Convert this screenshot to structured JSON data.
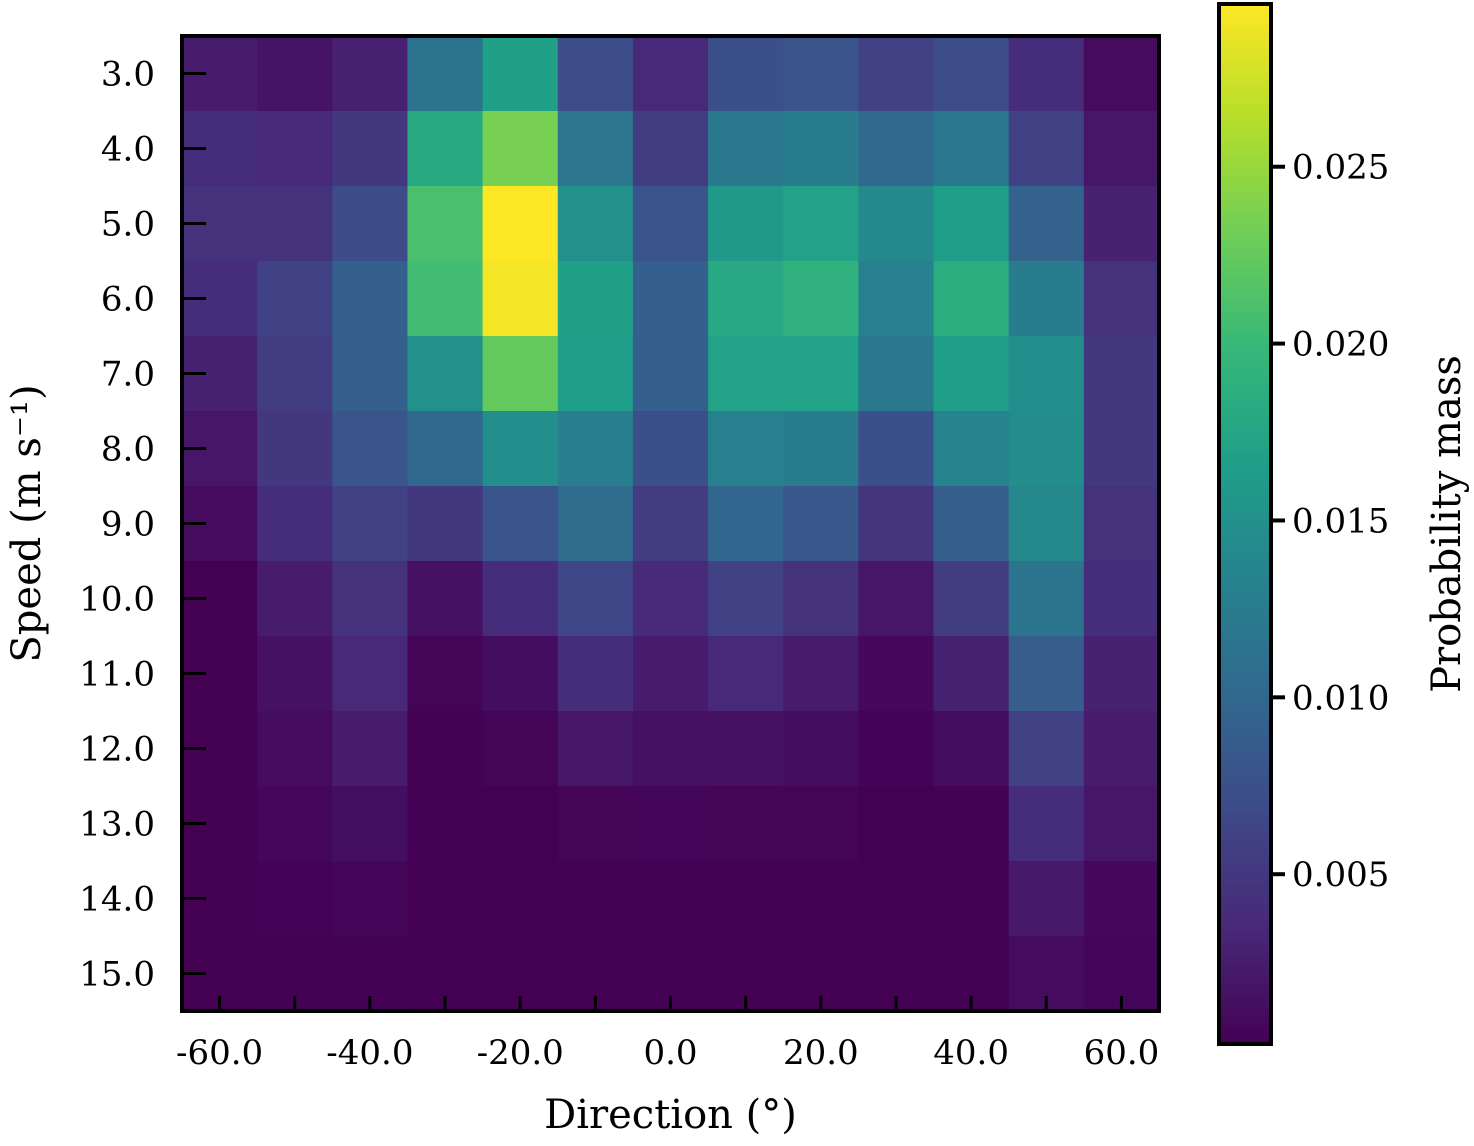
{
  "chart_data": {
    "type": "heatmap",
    "title": "",
    "xlabel": "Direction (°)",
    "ylabel": "Speed (m s⁻¹)",
    "x_values": [
      -60,
      -50,
      -40,
      -30,
      -20,
      -10,
      0,
      10,
      20,
      30,
      40,
      50,
      60
    ],
    "y_values": [
      3,
      4,
      5,
      6,
      7,
      8,
      9,
      10,
      11,
      12,
      13,
      14,
      15
    ],
    "x_tick_labels": [
      "-60.0",
      "-40.0",
      "-20.0",
      "0.0",
      "20.0",
      "40.0",
      "60.0"
    ],
    "y_tick_labels": [
      "3.0",
      "4.0",
      "5.0",
      "6.0",
      "7.0",
      "8.0",
      "9.0",
      "10.0",
      "11.0",
      "12.0",
      "13.0",
      "14.0",
      "15.0"
    ],
    "xlim": [
      -65,
      65
    ],
    "ylim": [
      15.5,
      2.5
    ],
    "colorbar": {
      "label": "Probability mass",
      "colormap": "viridis",
      "range": [
        0.0002,
        0.0296
      ],
      "tick_values": [
        0.005,
        0.01,
        0.015,
        0.02,
        0.025
      ],
      "tick_labels": [
        "0.005",
        "0.010",
        "0.015",
        "0.020",
        "0.025"
      ]
    },
    "values": [
      [
        0.0025,
        0.0018,
        0.0028,
        0.0115,
        0.0168,
        0.0072,
        0.0035,
        0.0075,
        0.008,
        0.006,
        0.0072,
        0.004,
        0.001
      ],
      [
        0.004,
        0.0035,
        0.005,
        0.018,
        0.0235,
        0.0118,
        0.0055,
        0.012,
        0.0125,
        0.01,
        0.012,
        0.006,
        0.002
      ],
      [
        0.0045,
        0.0045,
        0.007,
        0.021,
        0.0296,
        0.015,
        0.008,
        0.016,
        0.017,
        0.014,
        0.0165,
        0.0095,
        0.003
      ],
      [
        0.004,
        0.006,
        0.009,
        0.0205,
        0.0292,
        0.0168,
        0.009,
        0.0178,
        0.019,
        0.013,
        0.0185,
        0.0125,
        0.0045
      ],
      [
        0.003,
        0.0055,
        0.009,
        0.015,
        0.0225,
        0.0165,
        0.009,
        0.017,
        0.017,
        0.012,
        0.0165,
        0.0148,
        0.005
      ],
      [
        0.002,
        0.005,
        0.008,
        0.01,
        0.0148,
        0.0128,
        0.0075,
        0.013,
        0.0125,
        0.0075,
        0.0135,
        0.0145,
        0.005
      ],
      [
        0.001,
        0.004,
        0.006,
        0.005,
        0.008,
        0.0105,
        0.0055,
        0.0098,
        0.0082,
        0.0048,
        0.009,
        0.014,
        0.0045
      ],
      [
        0.0002,
        0.0025,
        0.0045,
        0.0015,
        0.004,
        0.0065,
        0.0038,
        0.006,
        0.0045,
        0.002,
        0.0055,
        0.0115,
        0.004
      ],
      [
        0.0002,
        0.0015,
        0.0035,
        0.0005,
        0.0012,
        0.004,
        0.0025,
        0.0035,
        0.0025,
        0.0008,
        0.003,
        0.0088,
        0.003
      ],
      [
        0.0002,
        0.001,
        0.0025,
        0.0003,
        0.0005,
        0.002,
        0.0015,
        0.0015,
        0.0012,
        0.0004,
        0.0012,
        0.006,
        0.0025
      ],
      [
        0.0002,
        0.0007,
        0.0014,
        0.0002,
        0.0002,
        0.0005,
        0.0006,
        0.0005,
        0.0005,
        0.0002,
        0.0003,
        0.004,
        0.002
      ],
      [
        0.0002,
        0.0004,
        0.0006,
        0.0002,
        0.0002,
        0.0002,
        0.0002,
        0.0002,
        0.0002,
        0.0002,
        0.0002,
        0.0022,
        0.0008
      ],
      [
        0.0002,
        0.0003,
        0.0003,
        0.0002,
        0.0002,
        0.0002,
        0.0002,
        0.0002,
        0.0002,
        0.0002,
        0.0002,
        0.001,
        0.0006
      ]
    ]
  }
}
